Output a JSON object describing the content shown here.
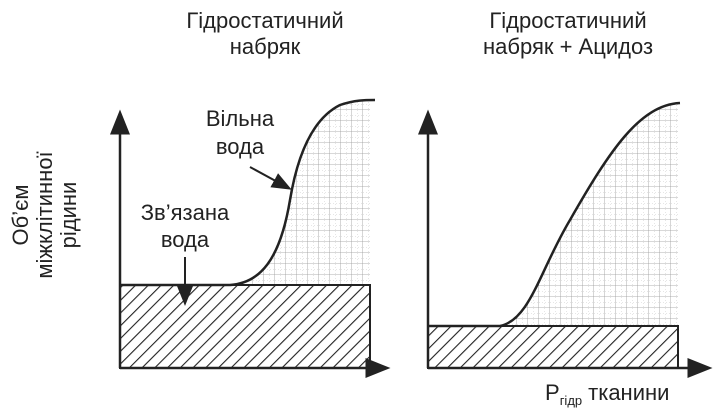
{
  "panels": [
    {
      "title": [
        "Гідростатичний",
        "набряк"
      ],
      "free_water": [
        "Вільна",
        "вода"
      ],
      "bound_water": [
        "Зв’язана",
        "вода"
      ]
    },
    {
      "title": [
        "Гідростатичний",
        "набряк + Ацидоз"
      ]
    }
  ],
  "y_axis_label": [
    "Об’єм",
    "міжклітинної",
    "рідини"
  ],
  "x_axis_label": {
    "main": "P",
    "sub": "гідр",
    "rest": "тканини"
  }
}
